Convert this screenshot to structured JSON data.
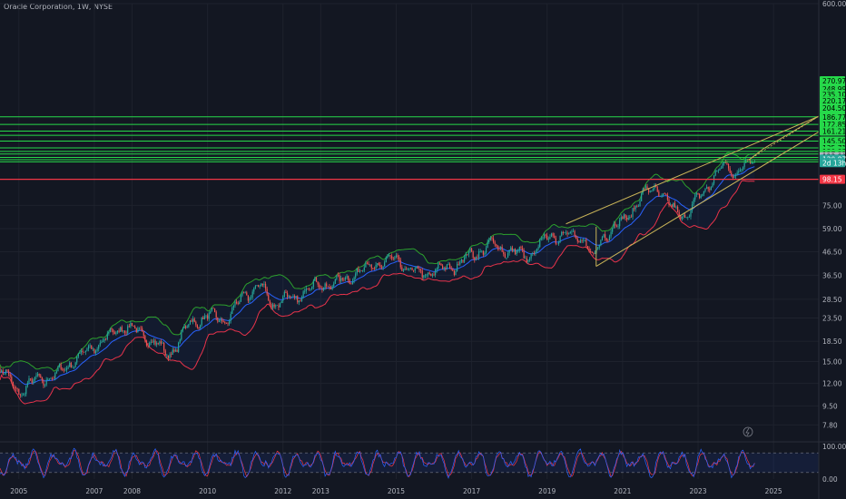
{
  "header": {
    "title": "Oracle Corporation, 1W, NYSE"
  },
  "colors": {
    "background": "#131722",
    "grid": "#1e222d",
    "resistance": "#26d94a",
    "support": "#f23645",
    "channel": "#c9b458",
    "bb_upper": "#2ca02c",
    "bb_lower": "#e8334a",
    "ema": "#2962ff",
    "candle_up": "#26a69a",
    "candle_down": "#ef5350",
    "rsi_k": "#2962ff",
    "rsi_d": "#f23645"
  },
  "chart_data": {
    "type": "candlestick",
    "title": "Oracle Corporation, 1W, NYSE",
    "yscale": "log",
    "ylim": [
      7,
      600
    ],
    "xlim": [
      2004.5,
      2026.2
    ],
    "x_ticks": [
      "2005",
      "2007",
      "2008",
      "2010",
      "2012",
      "2013",
      "2015",
      "2017",
      "2019",
      "2021",
      "2023",
      "2025"
    ],
    "x_tick_values": [
      2005,
      2007,
      2008,
      2010,
      2012,
      2013,
      2015,
      2017,
      2019,
      2021,
      2023,
      2025
    ],
    "y_ticks": [
      "600.00",
      "75.00",
      "59.00",
      "46.50",
      "36.50",
      "28.50",
      "23.50",
      "18.50",
      "15.00",
      "12.00",
      "9.50",
      "7.80"
    ],
    "y_tick_values": [
      600,
      75,
      59,
      46.5,
      36.5,
      28.5,
      23.5,
      18.5,
      15,
      12,
      9.5,
      7.8
    ],
    "price_path": {
      "x": [
        2004.5,
        2004.8,
        2005.0,
        2005.5,
        2006.0,
        2006.5,
        2007.0,
        2007.5,
        2007.8,
        2008.2,
        2008.6,
        2008.9,
        2009.1,
        2009.5,
        2010.0,
        2010.5,
        2011.0,
        2011.4,
        2011.7,
        2012.0,
        2012.3,
        2012.6,
        2013.0,
        2013.5,
        2014.0,
        2014.5,
        2015.0,
        2015.5,
        2016.0,
        2016.5,
        2017.0,
        2017.5,
        2018.0,
        2018.5,
        2019.0,
        2019.5,
        2020.0,
        2020.2,
        2020.5,
        2021.0,
        2021.5,
        2021.9,
        2022.3,
        2022.7,
        2023.0,
        2023.4,
        2023.7,
        2024.0,
        2024.3,
        2024.5
      ],
      "y": [
        14.0,
        12.0,
        11.0,
        12.5,
        13.0,
        15.5,
        17.5,
        20.0,
        22.0,
        20.0,
        18.5,
        16.0,
        17.0,
        22.0,
        24.0,
        23.0,
        30.0,
        33.0,
        27.0,
        29.0,
        28.0,
        32.0,
        33.0,
        34.0,
        38.0,
        41.0,
        43.0,
        37.0,
        38.0,
        40.0,
        45.0,
        50.0,
        47.0,
        44.0,
        54.0,
        56.0,
        53.0,
        42.0,
        56.0,
        63.0,
        82.0,
        92.0,
        72.0,
        68.0,
        80.0,
        100.0,
        112.0,
        106.0,
        114.0,
        120.87
      ]
    },
    "support_level": 98.15,
    "resistance_levels": [
      127.31,
      130.82,
      135.71,
      145.5,
      161.21,
      172.85,
      186.77,
      204.5,
      220.17,
      235.1,
      248.99,
      270.97
    ],
    "fib_level_lines": [
      117.5,
      120.2,
      123.0,
      127.31,
      130.82,
      135.71,
      145.5,
      154.5,
      161.21,
      172.85,
      186.77
    ],
    "price_badges": [
      {
        "label": "270.97",
        "value": 270.97,
        "kind": "resistance"
      },
      {
        "label": "248.99",
        "value": 248.99,
        "kind": "resistance"
      },
      {
        "label": "235.10",
        "value": 235.1,
        "kind": "resistance"
      },
      {
        "label": "220.17",
        "value": 220.17,
        "kind": "resistance"
      },
      {
        "label": "204.50",
        "value": 204.5,
        "kind": "resistance"
      },
      {
        "label": "186.77",
        "value": 186.77,
        "kind": "resistance"
      },
      {
        "label": "172.85",
        "value": 172.85,
        "kind": "resistance"
      },
      {
        "label": "161.21",
        "value": 161.21,
        "kind": "resistance"
      },
      {
        "label": "145.50",
        "value": 145.5,
        "kind": "resistance"
      },
      {
        "label": "135.71",
        "value": 135.71,
        "kind": "resistance"
      },
      {
        "label": "130.82",
        "value": 130.82,
        "kind": "resistance"
      },
      {
        "label": "127.31",
        "value": 127.31,
        "kind": "resistance"
      },
      {
        "label": "123.89",
        "value": 123.89,
        "kind": "pivot"
      },
      {
        "label": "120.87",
        "value": 120.87,
        "kind": "last"
      },
      {
        "label": "2d 13h",
        "value": 116.5,
        "kind": "countdown"
      },
      {
        "label": "98.15",
        "value": 98.15,
        "kind": "support"
      }
    ],
    "channel": {
      "upper": {
        "x": [
          2019.5,
          2026.2
        ],
        "y": [
          62.0,
          188.0
        ]
      },
      "lower": {
        "x": [
          2020.3,
          2026.2
        ],
        "y": [
          40.0,
          160.0
        ]
      },
      "projection": {
        "x": [
          2024.35,
          2024.75,
          2026.2
        ],
        "y": [
          120.0,
          135.0,
          188.0
        ]
      }
    },
    "rsi": {
      "ylim": [
        0,
        100
      ],
      "ticks": [
        "100.00",
        "0.00"
      ],
      "tick_values": [
        100,
        0
      ],
      "band": [
        20,
        80
      ]
    }
  }
}
